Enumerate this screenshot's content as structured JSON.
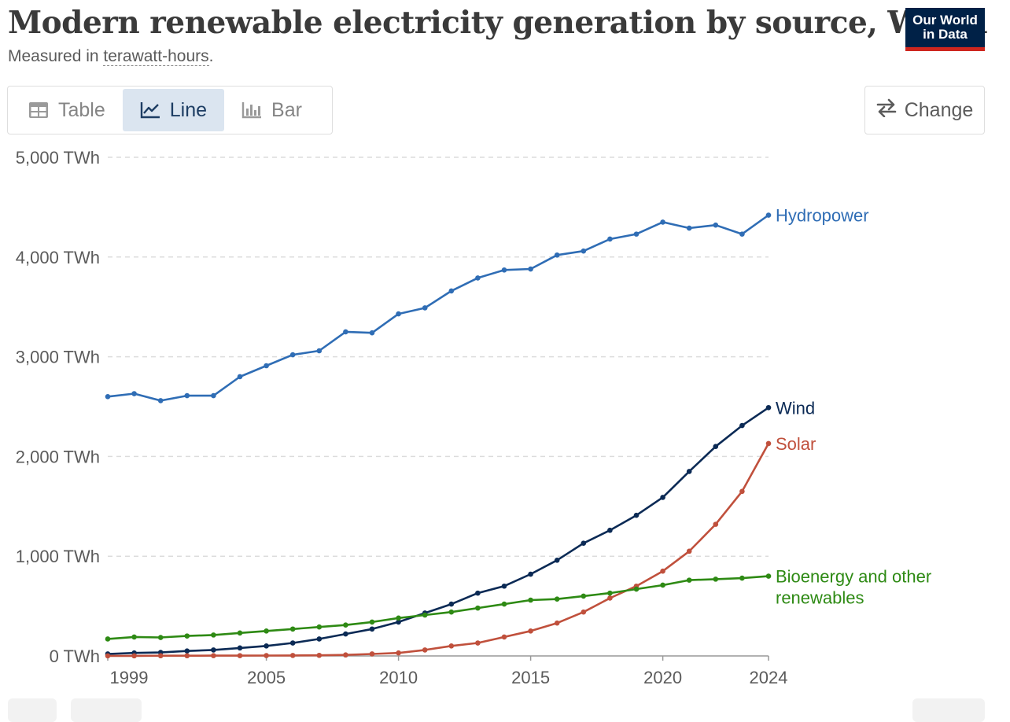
{
  "header": {
    "title": "Modern renewable electricity generation by source, World",
    "subtitle_prefix": "Measured in ",
    "subtitle_unit": "terawatt-hours",
    "subtitle_suffix": ".",
    "logo_line1": "Our World",
    "logo_line2": "in Data"
  },
  "tabs": [
    {
      "label": "Table",
      "icon": "table-icon",
      "active": false
    },
    {
      "label": "Line",
      "icon": "line-chart-icon",
      "active": true
    },
    {
      "label": "Bar",
      "icon": "bar-chart-icon",
      "active": false
    }
  ],
  "change_button": {
    "label": "Change",
    "icon": "swap-arrows-icon"
  },
  "colors": {
    "hydropower": "#2f6db5",
    "wind": "#0b2a55",
    "solar": "#c0503c",
    "bioenergy": "#2e8a14",
    "grid": "#dcdcdc",
    "axis_text": "#5b5b5b"
  },
  "chart_data": {
    "type": "line",
    "title": "Modern renewable electricity generation by source, World",
    "ylabel": "terawatt-hours",
    "ylim": [
      0,
      5000
    ],
    "xlim": [
      1999,
      2024
    ],
    "y_ticks": [
      0,
      1000,
      2000,
      3000,
      4000,
      5000
    ],
    "y_tick_labels": [
      "0 TWh",
      "1,000 TWh",
      "2,000 TWh",
      "3,000 TWh",
      "4,000 TWh",
      "5,000 TWh"
    ],
    "x_ticks": [
      1999,
      2005,
      2010,
      2015,
      2020,
      2024
    ],
    "x_tick_labels": [
      "1999",
      "2005",
      "2010",
      "2015",
      "2020",
      "2024"
    ],
    "x": [
      1999,
      2000,
      2001,
      2002,
      2003,
      2004,
      2005,
      2006,
      2007,
      2008,
      2009,
      2010,
      2011,
      2012,
      2013,
      2014,
      2015,
      2016,
      2017,
      2018,
      2019,
      2020,
      2021,
      2022,
      2023,
      2024
    ],
    "series": [
      {
        "key": "hydropower",
        "name": "Hydropower",
        "label_lines": [
          "Hydropower"
        ],
        "values": [
          2600,
          2630,
          2560,
          2610,
          2610,
          2800,
          2910,
          3020,
          3060,
          3250,
          3240,
          3430,
          3490,
          3660,
          3790,
          3870,
          3880,
          4020,
          4060,
          4180,
          4230,
          4350,
          4290,
          4320,
          4230,
          4420
        ]
      },
      {
        "key": "wind",
        "name": "Wind",
        "label_lines": [
          "Wind"
        ],
        "values": [
          20,
          30,
          35,
          50,
          60,
          80,
          100,
          130,
          170,
          220,
          270,
          340,
          430,
          520,
          630,
          700,
          820,
          960,
          1130,
          1260,
          1410,
          1590,
          1850,
          2100,
          2310,
          2490
        ]
      },
      {
        "key": "solar",
        "name": "Solar",
        "label_lines": [
          "Solar"
        ],
        "values": [
          1,
          1,
          2,
          2,
          3,
          3,
          4,
          5,
          6,
          10,
          20,
          30,
          60,
          100,
          130,
          190,
          250,
          330,
          440,
          580,
          700,
          850,
          1050,
          1320,
          1650,
          2130
        ]
      },
      {
        "key": "bioenergy",
        "name": "Bioenergy and other renewables",
        "label_lines": [
          "Bioenergy and other",
          "renewables"
        ],
        "values": [
          170,
          190,
          185,
          200,
          210,
          230,
          250,
          270,
          290,
          310,
          340,
          380,
          410,
          440,
          480,
          520,
          560,
          570,
          600,
          630,
          670,
          710,
          760,
          770,
          780,
          800
        ]
      }
    ]
  }
}
